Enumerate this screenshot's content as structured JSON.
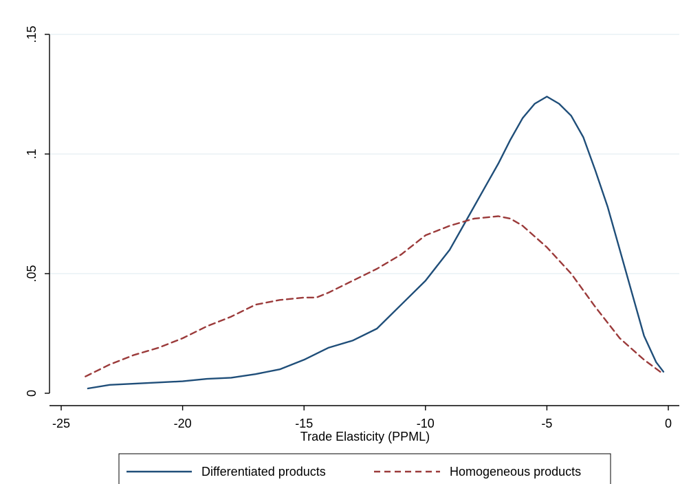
{
  "chart_data": {
    "type": "line",
    "title": "",
    "xlabel": "Trade Elasticity (PPML)",
    "ylabel": "",
    "xlim": [
      -25,
      0
    ],
    "ylim": [
      0,
      0.15
    ],
    "x_ticks": [
      -25,
      -20,
      -15,
      -10,
      -5,
      0
    ],
    "x_tick_labels": [
      "-25",
      "-20",
      "-15",
      "-10",
      "-5",
      "0"
    ],
    "y_ticks": [
      0,
      0.05,
      0.1,
      0.15
    ],
    "y_tick_labels": [
      "0",
      ".05",
      ".1",
      ".15"
    ],
    "grid": "horizontal",
    "legend_position": "bottom",
    "series": [
      {
        "name": "Differentiated products",
        "color": "#1f4e79",
        "style": "solid",
        "x": [
          -23.9,
          -23.0,
          -22.0,
          -21.0,
          -20.0,
          -19.0,
          -18.0,
          -17.0,
          -16.0,
          -15.0,
          -14.0,
          -13.0,
          -12.0,
          -11.0,
          -10.0,
          -9.0,
          -8.5,
          -8.0,
          -7.5,
          -7.0,
          -6.5,
          -6.0,
          -5.5,
          -5.0,
          -4.5,
          -4.0,
          -3.5,
          -3.0,
          -2.5,
          -2.0,
          -1.5,
          -1.0,
          -0.5,
          -0.2
        ],
        "y": [
          0.002,
          0.0035,
          0.004,
          0.0045,
          0.005,
          0.006,
          0.0065,
          0.008,
          0.01,
          0.014,
          0.019,
          0.022,
          0.027,
          0.037,
          0.047,
          0.06,
          0.069,
          0.078,
          0.087,
          0.096,
          0.106,
          0.115,
          0.121,
          0.124,
          0.121,
          0.116,
          0.107,
          0.093,
          0.078,
          0.06,
          0.042,
          0.024,
          0.013,
          0.009
        ]
      },
      {
        "name": "Homogeneous products",
        "color": "#9b3a3a",
        "style": "dashed",
        "x": [
          -24.0,
          -23.0,
          -22.0,
          -21.0,
          -20.0,
          -19.0,
          -18.0,
          -17.0,
          -16.0,
          -15.0,
          -14.5,
          -14.0,
          -13.0,
          -12.0,
          -11.0,
          -10.0,
          -9.0,
          -8.0,
          -7.0,
          -6.5,
          -6.0,
          -5.0,
          -4.0,
          -3.0,
          -2.0,
          -1.0,
          -0.2
        ],
        "y": [
          0.007,
          0.012,
          0.016,
          0.019,
          0.023,
          0.028,
          0.032,
          0.037,
          0.039,
          0.04,
          0.04,
          0.042,
          0.047,
          0.052,
          0.058,
          0.066,
          0.07,
          0.073,
          0.074,
          0.073,
          0.07,
          0.061,
          0.05,
          0.036,
          0.023,
          0.014,
          0.008
        ]
      }
    ]
  }
}
